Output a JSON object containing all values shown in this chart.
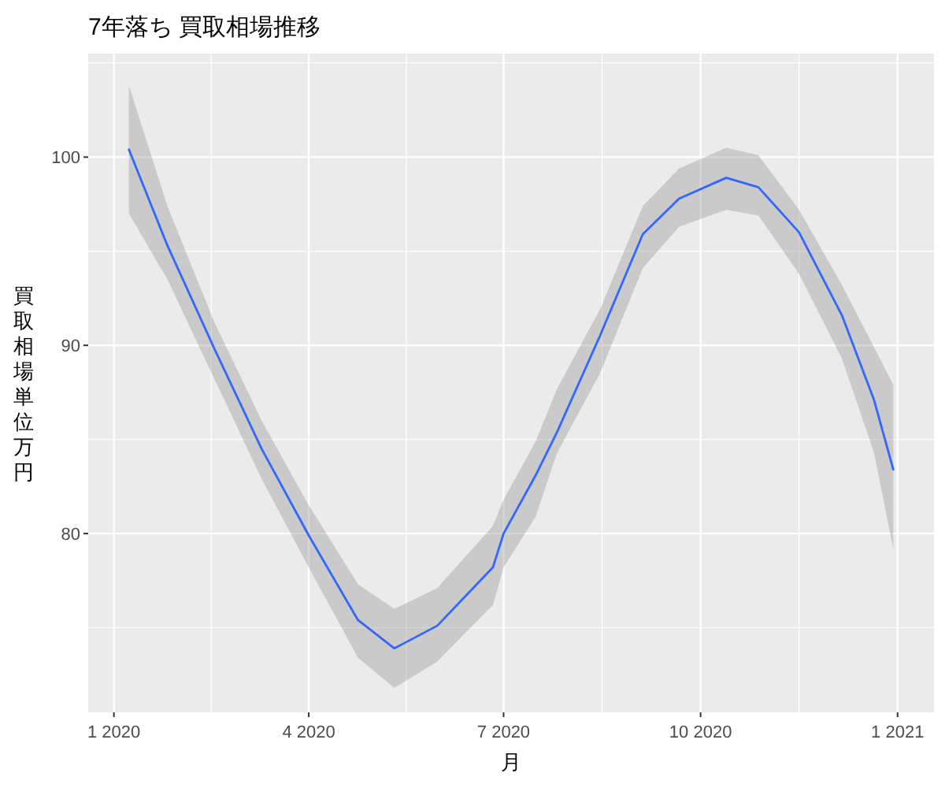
{
  "chart_data": {
    "type": "line",
    "title": "7年落ち 買取相場推移",
    "xlabel": "月",
    "ylabel": "買取相場単位万円",
    "x": [
      "2020-01-08",
      "2020-01-26",
      "2020-02-17",
      "2020-03-10",
      "2020-04-01",
      "2020-04-24",
      "2020-05-11",
      "2020-05-31",
      "2020-06-26",
      "2020-07-01",
      "2020-07-16",
      "2020-07-26",
      "2020-08-15",
      "2020-09-04",
      "2020-09-21",
      "2020-10-13",
      "2020-10-28",
      "2020-11-16",
      "2020-12-06",
      "2020-12-21",
      "2020-12-30"
    ],
    "series": [
      {
        "color": "#3366ff",
        "values": [
          100.4,
          95.3,
          89.8,
          84.5,
          79.9,
          75.4,
          73.9,
          75.1,
          78.2,
          80.0,
          83.1,
          85.4,
          90.5,
          95.9,
          97.8,
          98.9,
          98.4,
          96.0,
          91.6,
          87.1,
          83.4
        ],
        "lower": [
          97.0,
          93.5,
          88.2,
          82.9,
          78.2,
          73.4,
          71.8,
          73.2,
          76.2,
          78.2,
          80.9,
          84.3,
          88.5,
          94.1,
          96.3,
          97.2,
          96.9,
          93.8,
          89.3,
          84.3,
          79.2
        ],
        "upper": [
          103.8,
          97.4,
          91.2,
          86.0,
          81.5,
          77.3,
          76.0,
          77.1,
          80.4,
          81.8,
          84.9,
          87.7,
          91.9,
          97.4,
          99.4,
          100.5,
          100.1,
          97.2,
          93.2,
          89.9,
          87.9
        ]
      }
    ],
    "xlim": [
      "2019-12-20",
      "2021-01-18"
    ],
    "xticks": [
      {
        "value": "2020-01-01",
        "label": "1 2020"
      },
      {
        "value": "2020-04-01",
        "label": "4 2020"
      },
      {
        "value": "2020-07-01",
        "label": "7 2020"
      },
      {
        "value": "2020-10-01",
        "label": "10 2020"
      },
      {
        "value": "2021-01-01",
        "label": "1 2021"
      }
    ],
    "ylim": [
      70.5,
      105.5
    ],
    "yticks": [
      80,
      90,
      100
    ],
    "grid": true,
    "line_style": "solid",
    "marker": "none"
  }
}
